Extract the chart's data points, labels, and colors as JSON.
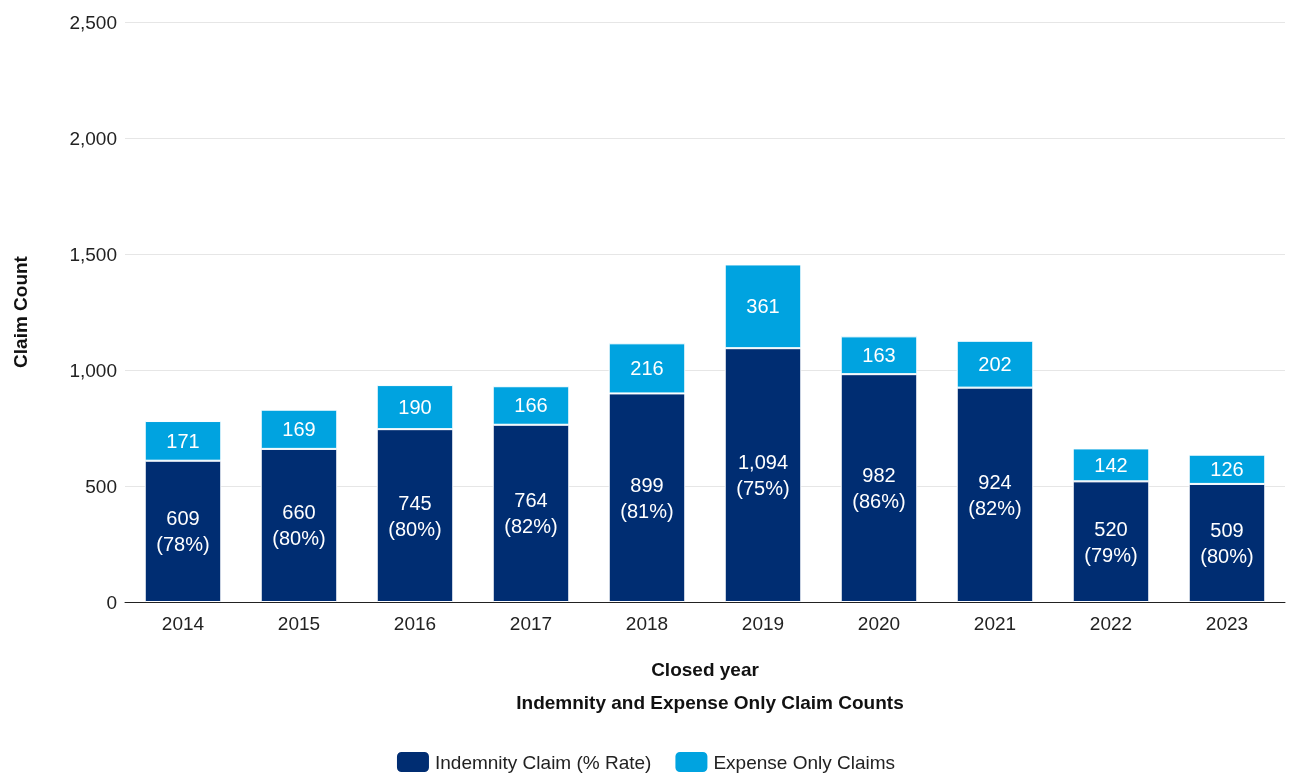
{
  "chart_data": {
    "type": "bar",
    "stacked": true,
    "xlabel": "Closed year",
    "subtitle": "Indemnity and Expense Only Claim Counts",
    "ylabel": "Claim Count",
    "categories": [
      "2014",
      "2015",
      "2016",
      "2017",
      "2018",
      "2019",
      "2020",
      "2021",
      "2022",
      "2023"
    ],
    "series": [
      {
        "name": "Indemnity Claim (% Rate)",
        "color": "#002d72",
        "values": [
          609,
          660,
          745,
          764,
          899,
          1094,
          982,
          924,
          520,
          509
        ],
        "value_labels": [
          "609\n(78%)",
          "660\n(80%)",
          "745\n(80%)",
          "764\n(82%)",
          "899\n(81%)",
          "1,094\n(75%)",
          "982\n(86%)",
          "924\n(82%)",
          "520\n(79%)",
          "509\n(80%)"
        ]
      },
      {
        "name": "Expense Only Claims",
        "color": "#00a3e0",
        "values": [
          171,
          169,
          190,
          166,
          216,
          361,
          163,
          202,
          142,
          126
        ],
        "value_labels": [
          "171",
          "169",
          "190",
          "166",
          "216",
          "361",
          "163",
          "202",
          "142",
          "126"
        ]
      }
    ],
    "ylim": [
      0,
      2500
    ],
    "yticks": [
      0,
      {
        "value": 500,
        "label": "500"
      },
      {
        "value": 1000,
        "label": "1,000"
      },
      {
        "value": 1500,
        "label": "1,500"
      },
      {
        "value": 2000,
        "label": "2,000"
      },
      {
        "value": 2500,
        "label": "2,500"
      }
    ],
    "grid": "y",
    "legend": "bottom"
  }
}
